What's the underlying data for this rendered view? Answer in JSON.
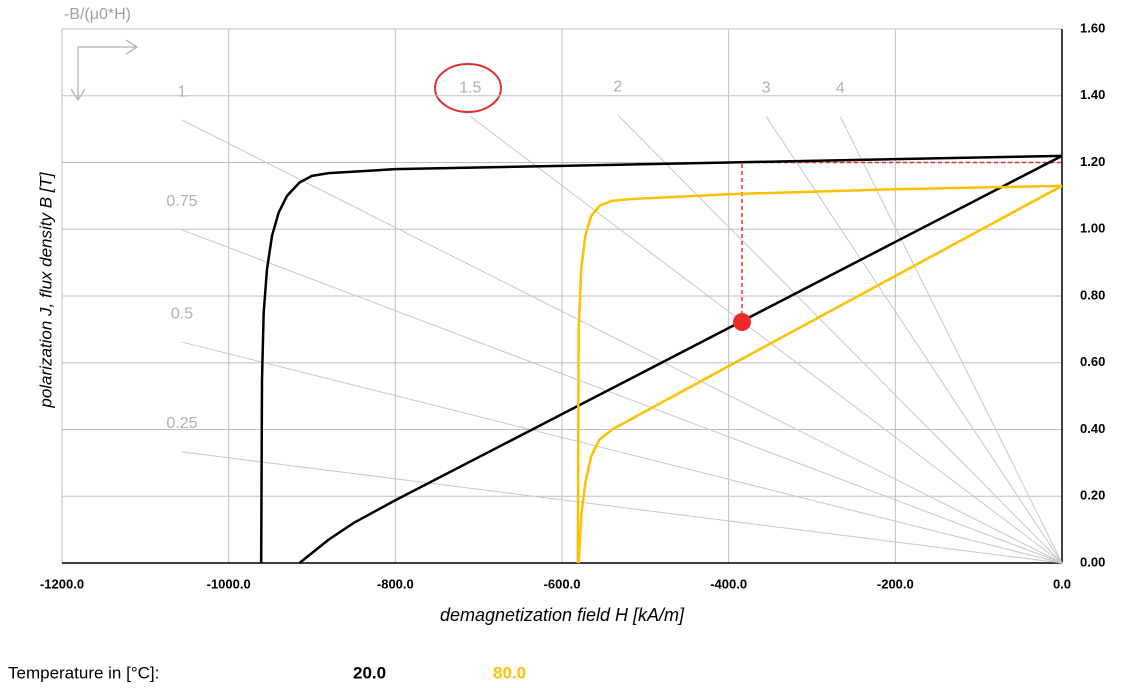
{
  "chart_data": {
    "type": "demag",
    "title": "-B/(μ0*H)",
    "x_label": "demagnetization field H [kA/m]",
    "y_label": "polarization J, flux density B [T]",
    "legend_title": "Temperature in [°C]:",
    "xlim": [
      -1200,
      0
    ],
    "ylim": [
      0,
      1.6
    ],
    "xticks": [
      {
        "value": -1200,
        "label": "-1200.0"
      },
      {
        "value": -1000,
        "label": "-1000.0"
      },
      {
        "value": -800,
        "label": "-800.0"
      },
      {
        "value": -600,
        "label": "-600.0"
      },
      {
        "value": -400,
        "label": "-400.0"
      },
      {
        "value": -200,
        "label": "-200.0"
      },
      {
        "value": 0,
        "label": "0.0"
      }
    ],
    "yticks": [
      {
        "value": 0,
        "label": "0.00"
      },
      {
        "value": 0.2,
        "label": "0.20"
      },
      {
        "value": 0.4,
        "label": "0.40"
      },
      {
        "value": 0.6,
        "label": "0.60"
      },
      {
        "value": 0.8,
        "label": "0.80"
      },
      {
        "value": 1.0,
        "label": "1.00"
      },
      {
        "value": 1.2,
        "label": "1.20"
      },
      {
        "value": 1.4,
        "label": "1.40"
      },
      {
        "value": 1.6,
        "label": "1.60"
      }
    ],
    "grid": true,
    "load_lines": [
      {
        "name": "0.25",
        "x": [
          0,
          -1056
        ],
        "y": [
          0,
          0.333
        ]
      },
      {
        "name": "0.5",
        "x": [
          0,
          -1056
        ],
        "y": [
          0,
          0.662
        ]
      },
      {
        "name": "0.75",
        "x": [
          0,
          -1056
        ],
        "y": [
          0,
          0.998
        ]
      },
      {
        "name": "1",
        "x": [
          0,
          -1056
        ],
        "y": [
          0,
          1.327
        ]
      },
      {
        "name": "1.5",
        "x": [
          0,
          -710
        ],
        "y": [
          0,
          1.338
        ]
      },
      {
        "name": "2",
        "x": [
          0,
          -533
        ],
        "y": [
          0,
          1.342
        ]
      },
      {
        "name": "3",
        "x": [
          0,
          -355
        ],
        "y": [
          0,
          1.338
        ]
      },
      {
        "name": "4",
        "x": [
          0,
          -266
        ],
        "y": [
          0,
          1.337
        ]
      }
    ],
    "series": [
      {
        "name": "20.0",
        "color": "#000000",
        "curves": [
          {
            "x": [
              0,
              -200,
              -400,
              -600,
              -800,
              -880,
              -900,
              -915,
              -930,
              -940,
              -948,
              -954,
              -958,
              -960,
              -961
            ],
            "values": [
              1.22,
              1.21,
              1.2,
              1.19,
              1.18,
              1.168,
              1.16,
              1.14,
              1.1,
              1.05,
              0.98,
              0.88,
              0.75,
              0.55,
              0
            ]
          },
          {
            "x": [
              0,
              -200,
              -400,
              -600,
              -800,
              -850,
              -880,
              -900,
              -915
            ],
            "values": [
              1.22,
              0.962,
              0.704,
              0.446,
              0.188,
              0.12,
              0.07,
              0.03,
              0
            ]
          }
        ]
      },
      {
        "name": "80.0",
        "color": "#ffc000",
        "curves": [
          {
            "x": [
              0,
              -200,
              -400,
              -520,
              -540,
              -555,
              -565,
              -572,
              -577,
              -580,
              -581
            ],
            "values": [
              1.13,
              1.12,
              1.105,
              1.09,
              1.085,
              1.07,
              1.04,
              0.98,
              0.88,
              0.7,
              0
            ]
          },
          {
            "x": [
              0,
              -200,
              -400,
              -540,
              -555,
              -565,
              -572,
              -577,
              -580
            ],
            "values": [
              1.13,
              0.86,
              0.59,
              0.4,
              0.37,
              0.32,
              0.24,
              0.14,
              0
            ]
          }
        ]
      }
    ],
    "operating_point": {
      "h": -384,
      "b": 0.722,
      "j": 1.2,
      "color": "#ee2b2b"
    }
  }
}
